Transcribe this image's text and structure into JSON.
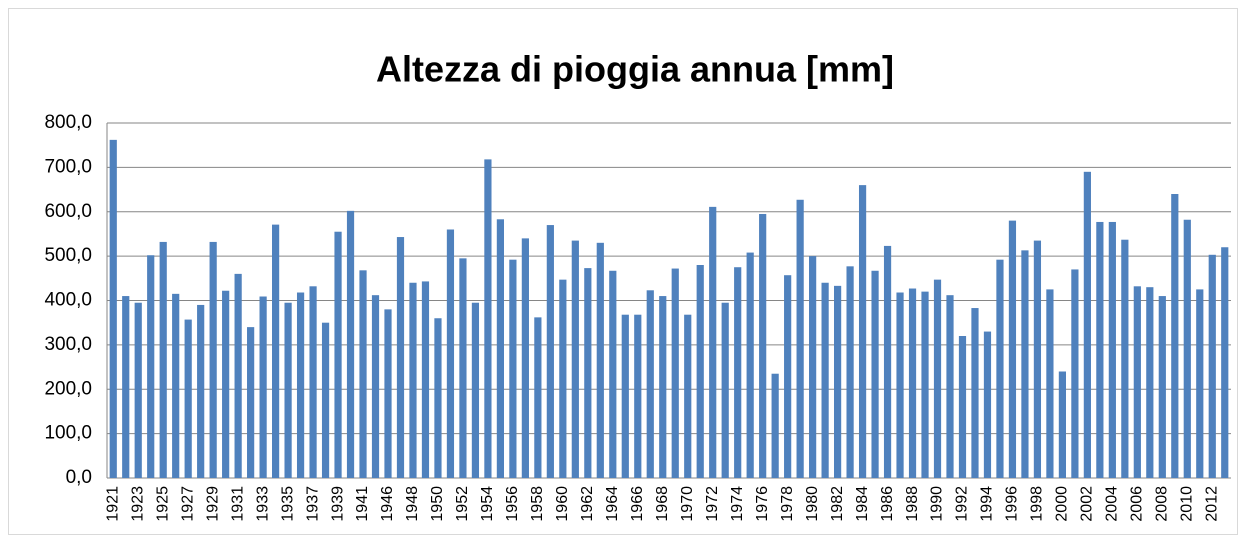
{
  "chart_data": {
    "type": "bar",
    "title": "Altezza di pioggia annua [mm]",
    "categories": [
      "1921",
      null,
      "1923",
      null,
      "1925",
      null,
      "1927",
      null,
      "1929",
      null,
      "1931",
      null,
      "1933",
      null,
      "1935",
      null,
      "1937",
      null,
      "1939",
      null,
      "1941",
      null,
      "1946",
      null,
      "1948",
      null,
      "1950",
      null,
      "1952",
      null,
      "1954",
      null,
      "1956",
      null,
      "1958",
      null,
      "1960",
      null,
      "1962",
      null,
      "1964",
      null,
      "1966",
      null,
      "1968",
      null,
      "1970",
      null,
      "1972",
      null,
      "1974",
      null,
      "1976",
      null,
      "1978",
      null,
      "1980",
      null,
      "1982",
      null,
      "1984",
      null,
      "1986",
      null,
      "1988",
      null,
      "1990",
      null,
      "1992",
      null,
      "1994",
      null,
      "1996",
      null,
      "1998",
      null,
      "2000",
      null,
      "2002",
      null,
      "2004",
      null,
      "2006",
      null,
      "2008",
      null,
      "2010",
      null,
      "2012",
      null
    ],
    "values": [
      762,
      410,
      395,
      502,
      532,
      415,
      357,
      390,
      532,
      422,
      460,
      340,
      409,
      571,
      395,
      418,
      432,
      350,
      555,
      602,
      468,
      412,
      380,
      543,
      440,
      443,
      360,
      560,
      495,
      395,
      718,
      583,
      492,
      540,
      362,
      570,
      447,
      535,
      473,
      530,
      467,
      368,
      368,
      423,
      410,
      472,
      368,
      480,
      611,
      395,
      475,
      508,
      595,
      235,
      457,
      627,
      500,
      440,
      433,
      477,
      660,
      467,
      523,
      418,
      427,
      420,
      447,
      412,
      320,
      383,
      330,
      492,
      580,
      513,
      535,
      425,
      240,
      470,
      690,
      577,
      577,
      537,
      432,
      430,
      410,
      640,
      582,
      425,
      503,
      520
    ],
    "color": "#4f81bd",
    "ylim": [
      0,
      800
    ],
    "yticks": [
      {
        "value": 0,
        "label": "0,0"
      },
      {
        "value": 100,
        "label": "100,0"
      },
      {
        "value": 200,
        "label": "200,0"
      },
      {
        "value": 300,
        "label": "300,0"
      },
      {
        "value": 400,
        "label": "400,0"
      },
      {
        "value": 500,
        "label": "500,0"
      },
      {
        "value": 600,
        "label": "600,0"
      },
      {
        "value": 700,
        "label": "700,0"
      },
      {
        "value": 800,
        "label": "800,0"
      }
    ],
    "grid": true
  }
}
